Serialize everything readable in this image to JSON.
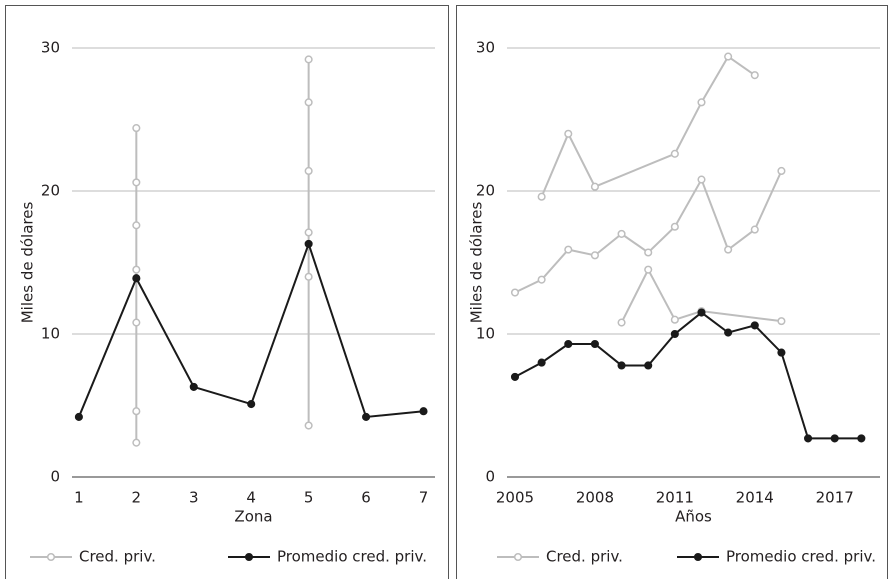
{
  "chart_data": [
    {
      "type": "line",
      "x_label": "Zona",
      "y_label": "Miles de dólares",
      "xlim": [
        0.88,
        7.2
      ],
      "xticks": [
        1,
        2,
        3,
        4,
        5,
        6,
        7
      ],
      "ylim": [
        0,
        30
      ],
      "yticks": [
        0,
        10,
        20,
        30
      ],
      "grid": true,
      "legend": "bottom",
      "series": [
        {
          "name": "Cred. priv.",
          "color": "#bdbdbd",
          "marker": "hollow",
          "x": [
            2,
            2,
            2,
            2,
            2,
            2,
            2,
            null,
            5,
            5,
            5,
            5,
            5,
            5
          ],
          "values": [
            24.4,
            20.6,
            17.6,
            14.5,
            10.8,
            4.6,
            2.4,
            null,
            29.2,
            26.2,
            21.4,
            17.1,
            14.0,
            3.6
          ]
        },
        {
          "name": "Promedio cred. priv.",
          "color": "#1a1a1a",
          "marker": "filled",
          "x": [
            1,
            2,
            3,
            4,
            5,
            6,
            7
          ],
          "values": [
            4.2,
            13.9,
            6.3,
            5.1,
            16.3,
            4.2,
            4.6
          ]
        }
      ]
    },
    {
      "type": "line",
      "x_label": "Años",
      "y_label": "Miles de dólares",
      "xlim": [
        2004.7,
        2018.7
      ],
      "xticks": [
        2005,
        2008,
        2011,
        2014,
        2017
      ],
      "ylim": [
        0,
        30
      ],
      "yticks": [
        0,
        10,
        20,
        30
      ],
      "grid": true,
      "legend": "bottom",
      "series": [
        {
          "name": "Cred. priv.",
          "color": "#bdbdbd",
          "marker": "hollow",
          "x": [
            2006,
            2007,
            2008,
            2011,
            2012,
            2013,
            2014,
            null,
            2005,
            2006,
            2007,
            2008,
            2009,
            2010,
            2011,
            2012,
            2013,
            2014,
            2015,
            null,
            2009,
            2010,
            2011,
            2012,
            2015
          ],
          "values": [
            19.6,
            24.0,
            20.3,
            22.6,
            26.2,
            29.4,
            28.1,
            null,
            12.9,
            13.8,
            15.9,
            15.5,
            17.0,
            15.7,
            17.5,
            20.8,
            15.9,
            17.3,
            21.4,
            null,
            10.8,
            14.5,
            11.0,
            11.6,
            10.9
          ]
        },
        {
          "name": "Promedio cred. priv.",
          "color": "#1a1a1a",
          "marker": "filled",
          "x": [
            2005,
            2006,
            2007,
            2008,
            2009,
            2010,
            2011,
            2012,
            2013,
            2014,
            2015,
            2016,
            2017,
            2018
          ],
          "values": [
            7.0,
            8.0,
            9.3,
            9.3,
            7.8,
            7.8,
            10.0,
            11.5,
            10.1,
            10.6,
            8.7,
            2.7,
            2.7,
            2.7
          ]
        }
      ]
    }
  ]
}
